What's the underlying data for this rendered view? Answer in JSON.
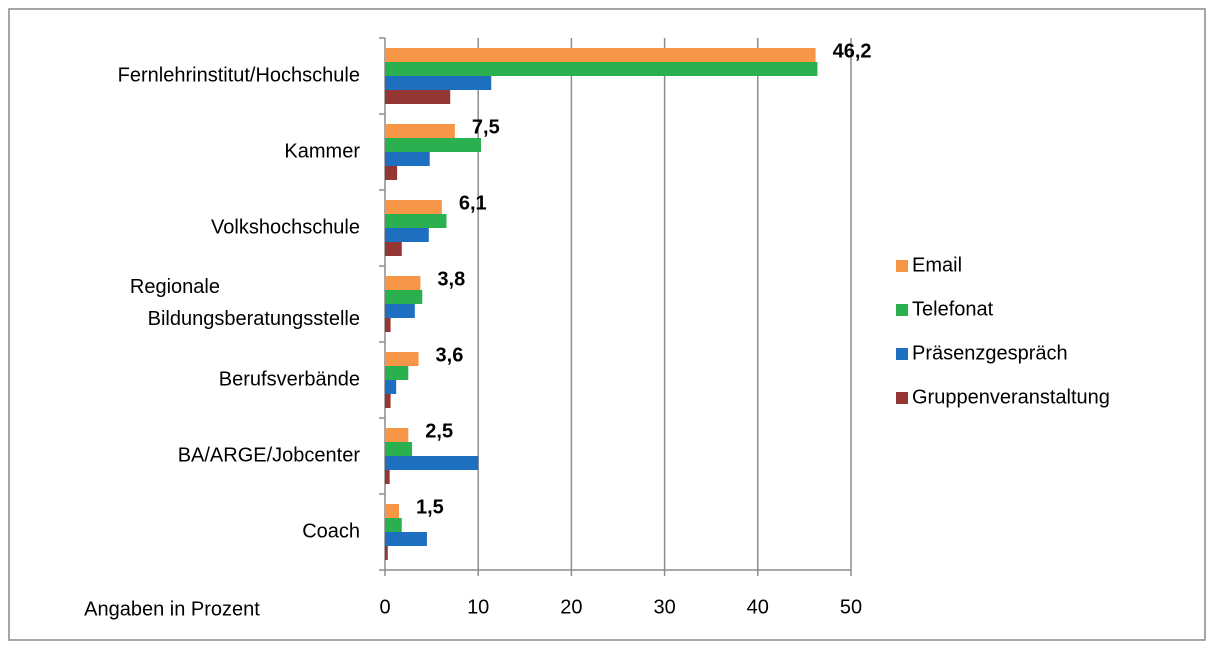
{
  "chart_data": {
    "type": "bar",
    "orientation": "horizontal",
    "categories": [
      "Fernlehrinstitut/Hochschule",
      "Kammer",
      "Volkshochschule",
      "Regionale\nBildungsberatungsstelle",
      "Berufsverbände",
      "BA/ARGE/Jobcenter",
      "Coach"
    ],
    "series": [
      {
        "name": "Email",
        "color": "#f79646",
        "values": [
          46.2,
          7.5,
          6.1,
          3.8,
          3.6,
          2.5,
          1.5
        ],
        "value_labels": [
          "46,2",
          "7,5",
          "6,1",
          "3,8",
          "3,6",
          "2,5",
          "1,5"
        ]
      },
      {
        "name": "Telefonat",
        "color": "#2bb050",
        "values": [
          46.4,
          10.3,
          6.6,
          4.0,
          2.5,
          2.9,
          1.8
        ]
      },
      {
        "name": "Präsenzgespräch",
        "color": "#1f6fc0",
        "values": [
          11.4,
          4.8,
          4.7,
          3.2,
          1.2,
          10.0,
          4.5
        ]
      },
      {
        "name": "Gruppenveranstaltung",
        "color": "#943634",
        "values": [
          7.0,
          1.3,
          1.8,
          0.6,
          0.6,
          0.5,
          0.3
        ]
      }
    ],
    "x_label": "Angaben in Prozent",
    "xlim": [
      0,
      50
    ],
    "xticks": [
      0,
      10,
      20,
      30,
      40,
      50
    ],
    "grid": true,
    "legend": "right"
  }
}
